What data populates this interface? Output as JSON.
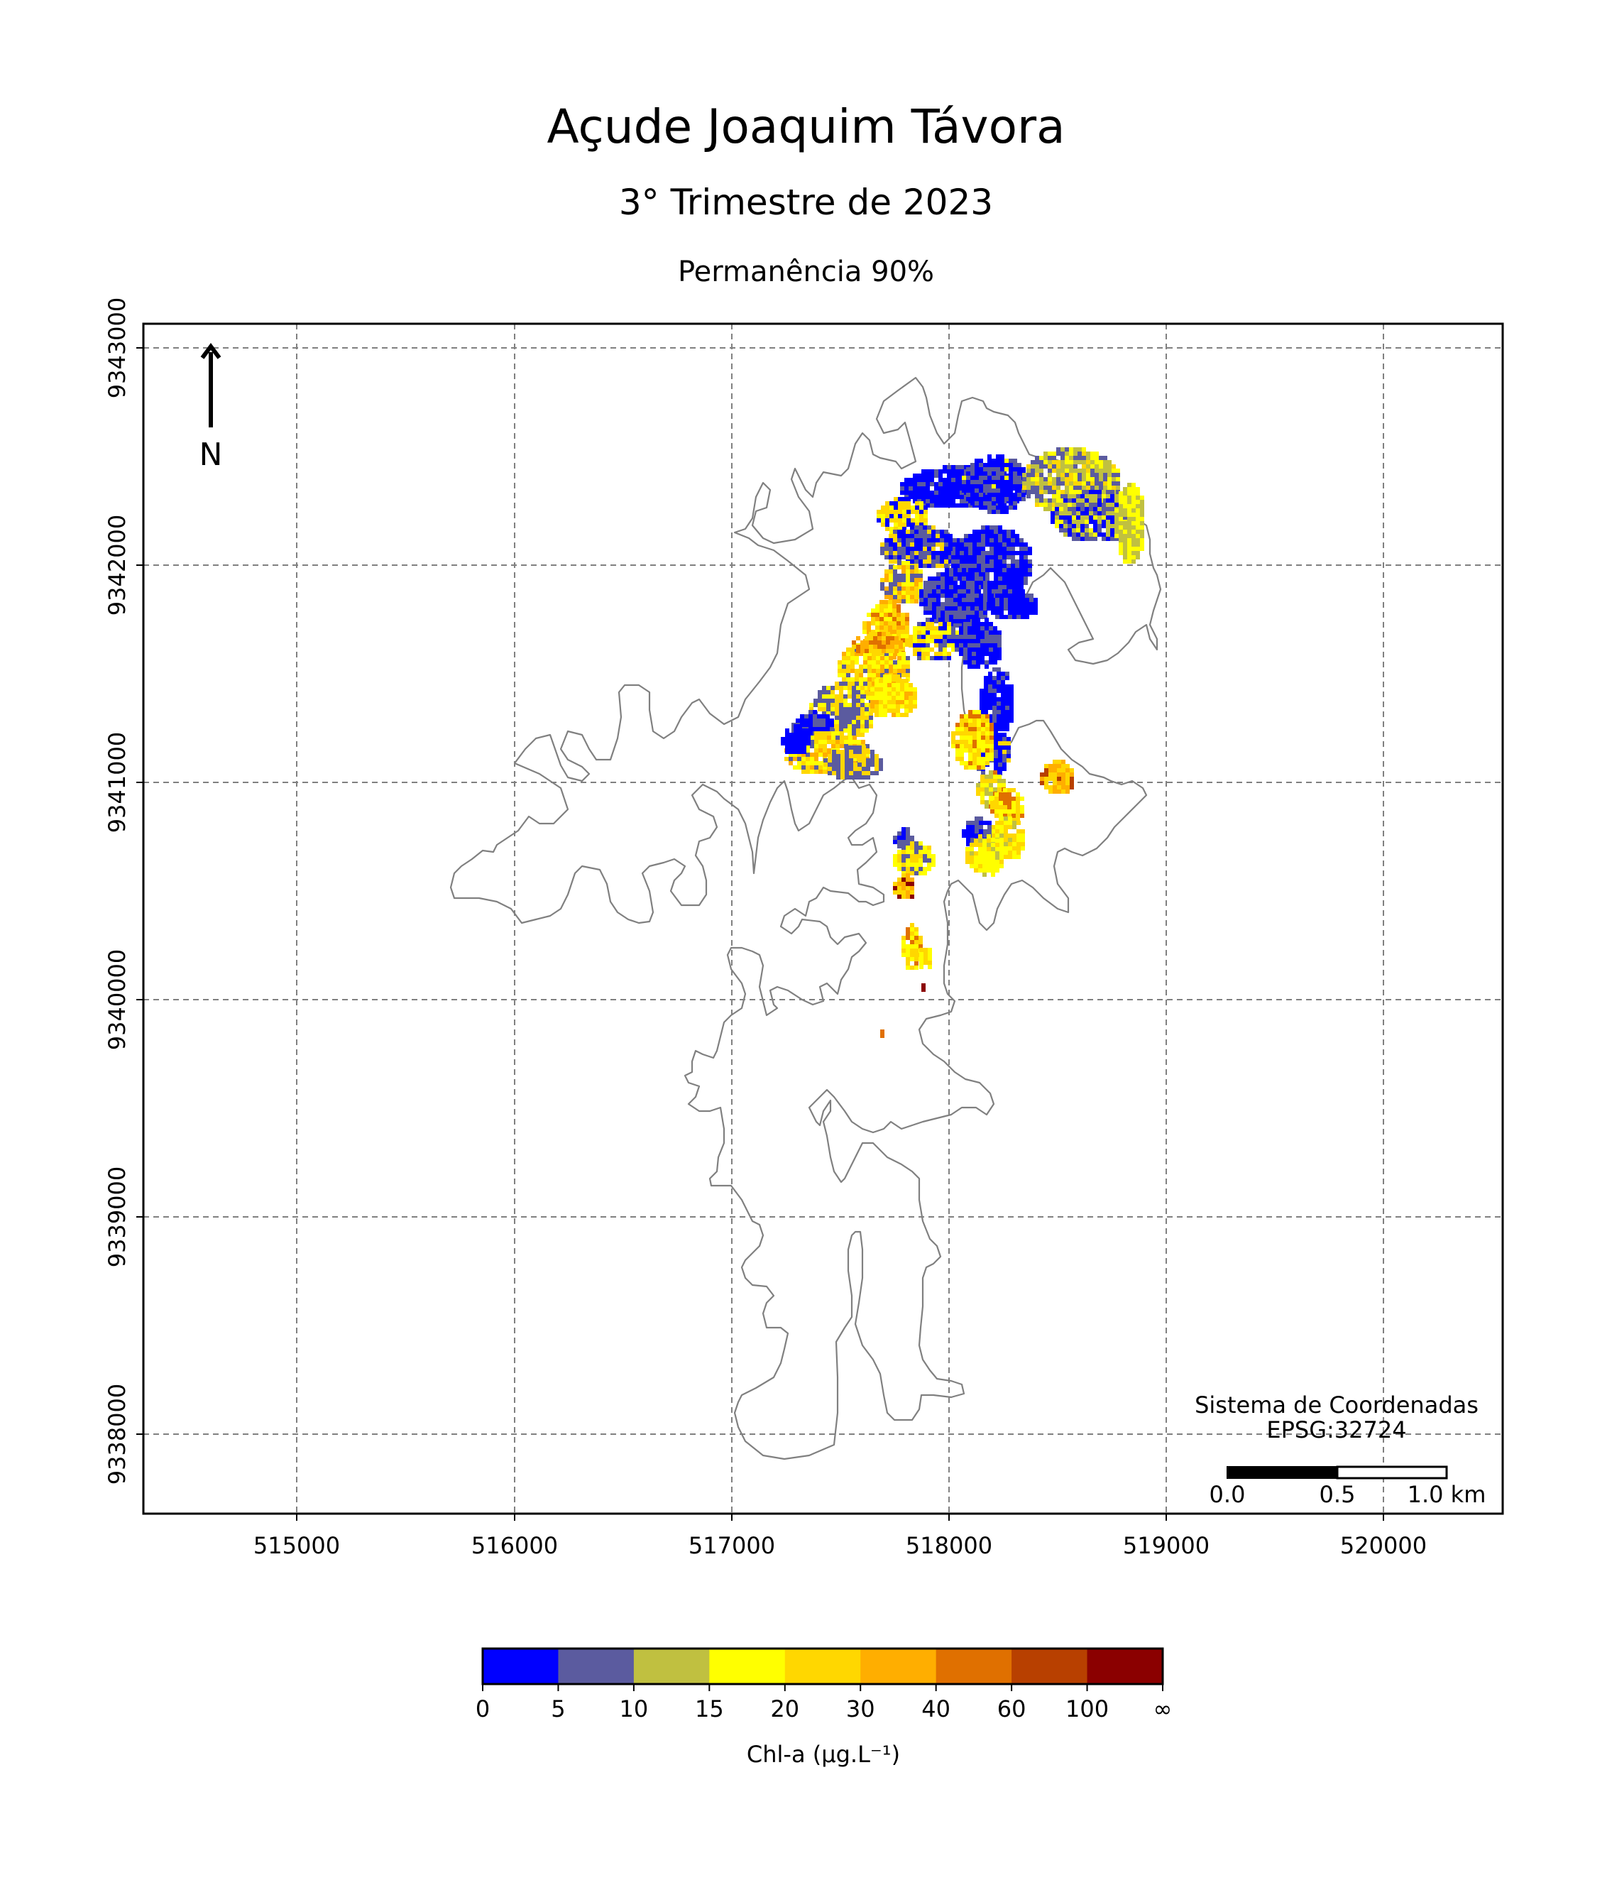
{
  "title": "Açude Joaquim Távora",
  "subtitle": "3° Trimestre de 2023",
  "panel_title": "Permanência 90%",
  "north_label": "N",
  "crs_label_line1": "Sistema de Coordenadas",
  "crs_label_line2": "EPSG:32724",
  "scalebar": {
    "labels": [
      "0.0",
      "0.5",
      "1.0 km"
    ]
  },
  "x_ticks": [
    "515000",
    "516000",
    "517000",
    "518000",
    "519000",
    "520000"
  ],
  "y_ticks": [
    "9343000",
    "9342000",
    "9341000",
    "9340000",
    "9339000",
    "9338000"
  ],
  "colorbar": {
    "label": "Chl-a (μg.L⁻¹)",
    "ticks": [
      "0",
      "5",
      "10",
      "15",
      "20",
      "30",
      "40",
      "60",
      "100",
      "∞"
    ],
    "colors": [
      "#0000ff",
      "#5b5b9f",
      "#c0c040",
      "#ffff00",
      "#ffd700",
      "#ffae00",
      "#e07000",
      "#b84000",
      "#8b0000"
    ]
  },
  "colors": {
    "outline": "#808080",
    "grid": "#808080"
  }
}
